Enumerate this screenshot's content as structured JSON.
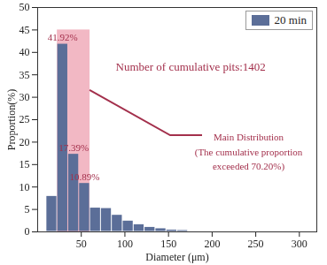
{
  "chart_data": {
    "type": "histogram",
    "x_label": "Diameter (μm)",
    "y_label": "Proportion(%)",
    "bins": [
      10,
      22.5,
      35,
      47.5,
      60,
      72.5,
      85,
      97.5,
      110,
      122.5,
      135,
      147.5,
      160,
      172.5,
      185,
      197.5
    ],
    "series": [
      {
        "name": "20 min",
        "color": "#5b6e98",
        "values": [
          8.0,
          41.92,
          17.39,
          10.89,
          5.4,
          5.3,
          3.8,
          2.5,
          1.7,
          1.1,
          0.8,
          0.5,
          0.4,
          0.2,
          0.1
        ],
        "value_labels": [
          null,
          "41.92%",
          "17.39%",
          "10.89%",
          null,
          null,
          null,
          null,
          null,
          null,
          null,
          null,
          null,
          null,
          null
        ]
      }
    ],
    "highlight": {
      "x": [
        22.5,
        60
      ],
      "y": [
        0,
        45
      ]
    },
    "annotations": [
      "Number of cumulative pits:1402",
      "Main Distribution\n(The cumulative proportion\nexceeded 70.20%)"
    ],
    "xlim": [
      0,
      320
    ],
    "xticks": [
      50,
      100,
      150,
      200,
      250,
      300
    ],
    "ylim": [
      0,
      50
    ],
    "yticks": [
      0,
      5,
      10,
      15,
      20,
      25,
      30,
      35,
      40,
      45,
      50
    ],
    "grid": false,
    "legend": "top-right"
  }
}
